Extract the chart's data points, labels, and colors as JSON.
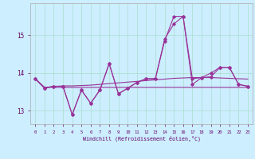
{
  "xlabel": "Windchill (Refroidissement éolien,°C)",
  "background_color": "#cceeff",
  "grid_color": "#aaddcc",
  "line_color": "#993399",
  "x": [
    0,
    1,
    2,
    3,
    4,
    5,
    6,
    7,
    8,
    9,
    10,
    11,
    12,
    13,
    14,
    15,
    16,
    17,
    18,
    19,
    20,
    21,
    22,
    23
  ],
  "line1": [
    13.85,
    13.62,
    13.62,
    13.62,
    13.62,
    13.62,
    13.62,
    13.62,
    13.62,
    13.62,
    13.62,
    13.62,
    13.62,
    13.62,
    13.62,
    13.62,
    13.62,
    13.62,
    13.62,
    13.62,
    13.62,
    13.62,
    13.62,
    13.62
  ],
  "line2": [
    13.85,
    13.62,
    13.64,
    13.66,
    13.66,
    13.67,
    13.68,
    13.7,
    13.72,
    13.74,
    13.76,
    13.78,
    13.8,
    13.82,
    13.84,
    13.86,
    13.87,
    13.88,
    13.88,
    13.88,
    13.87,
    13.86,
    13.85,
    13.84
  ],
  "line3": [
    13.85,
    13.6,
    13.65,
    13.65,
    12.9,
    13.55,
    13.2,
    13.55,
    14.25,
    13.45,
    13.6,
    13.75,
    13.85,
    13.85,
    14.9,
    15.3,
    15.5,
    13.7,
    13.88,
    13.9,
    14.15,
    14.15,
    13.7,
    13.65
  ],
  "line4": [
    13.85,
    13.6,
    13.65,
    13.65,
    12.9,
    13.55,
    13.2,
    13.55,
    14.25,
    13.45,
    13.6,
    13.75,
    13.85,
    13.85,
    14.85,
    15.5,
    15.5,
    13.85,
    13.88,
    14.0,
    14.15,
    14.15,
    13.7,
    13.65
  ],
  "ylim": [
    12.65,
    15.85
  ],
  "yticks": [
    13,
    14,
    15
  ],
  "xticks": [
    0,
    1,
    2,
    3,
    4,
    5,
    6,
    7,
    8,
    9,
    10,
    11,
    12,
    13,
    14,
    15,
    16,
    17,
    18,
    19,
    20,
    21,
    22,
    23
  ]
}
